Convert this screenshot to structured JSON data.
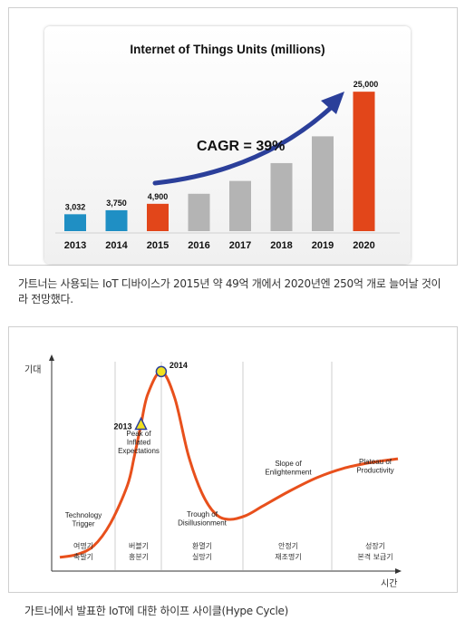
{
  "chart_data": [
    {
      "type": "bar",
      "title": "Internet of Things Units (millions)",
      "categories": [
        "2013",
        "2014",
        "2015",
        "2016",
        "2017",
        "2018",
        "2019",
        "2020"
      ],
      "values": [
        3032,
        3750,
        4900,
        6700,
        9000,
        12200,
        17000,
        25000
      ],
      "data_labels": [
        "3,032",
        "3,750",
        "4,900",
        "",
        "",
        "",
        "",
        "25,000"
      ],
      "colors": [
        "#1f8fc4",
        "#1f8fc4",
        "#e2461a",
        "#b4b4b4",
        "#b4b4b4",
        "#b4b4b4",
        "#b4b4b4",
        "#e2461a"
      ],
      "ylim": [
        0,
        26000
      ],
      "annotation": "CAGR = 39%",
      "arrow_color": "#2b3f9a"
    },
    {
      "type": "line",
      "ylabel": "기대",
      "xlabel": "시간",
      "x": [
        0,
        5,
        10,
        15,
        20,
        22,
        24,
        26,
        30,
        34,
        38,
        42,
        46,
        50,
        55,
        60,
        68,
        76,
        84,
        92,
        100
      ],
      "y": [
        2,
        3.5,
        8,
        20,
        40,
        55,
        72,
        88,
        100,
        86,
        56,
        36,
        25,
        22,
        24,
        29,
        37,
        44,
        49,
        52,
        54
      ],
      "ylim": [
        0,
        110
      ],
      "line_color": "#e8501c",
      "markers": [
        {
          "label": "2013",
          "shape": "triangle",
          "x": 24,
          "y": 72
        },
        {
          "label": "2014",
          "shape": "circle",
          "x": 30,
          "y": 100
        }
      ],
      "phases": [
        {
          "name": "Technology Trigger",
          "ko_top": "여명기",
          "ko_bottom": "촉발기"
        },
        {
          "name": "Peak of Inflated Expectations",
          "ko_top": "버블기",
          "ko_bottom": "흥분기"
        },
        {
          "name": "Trough of Disillusionment",
          "ko_top": "환멸기",
          "ko_bottom": "실망기"
        },
        {
          "name": "Slope of Enlightenment",
          "ko_top": "안정기",
          "ko_bottom": "재조명기"
        },
        {
          "name": "Plateau of Productivity",
          "ko_top": "성장기",
          "ko_bottom": "본격 보급기"
        }
      ]
    }
  ],
  "captions": {
    "chart1": "가트너는 사용되는 IoT 디바이스가 2015년 약 49억 개에서 2020년엔 250억 개로 늘어날 것이라 전망했다.",
    "chart2": "가트너에서 발표한 IoT에 대한 하이프 사이클(Hype Cycle)"
  }
}
